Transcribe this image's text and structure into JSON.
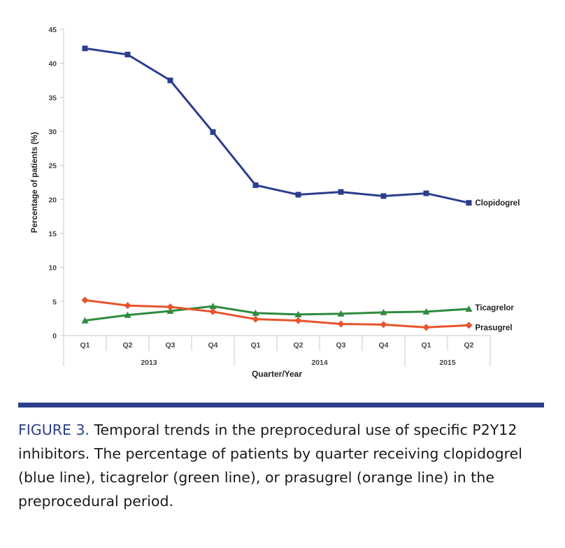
{
  "chart_data": {
    "type": "line",
    "ylabel": "Percentage of patients (%)",
    "xlabel": "Quarter/Year",
    "ylim": [
      0,
      45
    ],
    "yticks": [
      0,
      5,
      10,
      15,
      20,
      25,
      30,
      35,
      40,
      45
    ],
    "categories": [
      "Q1",
      "Q2",
      "Q3",
      "Q4",
      "Q1",
      "Q2",
      "Q3",
      "Q4",
      "Q1",
      "Q2"
    ],
    "year_groups": [
      {
        "label": "2013",
        "count": 4
      },
      {
        "label": "2014",
        "count": 4
      },
      {
        "label": "2015",
        "count": 2
      }
    ],
    "grid": false,
    "legend": "end-of-line labels",
    "series": [
      {
        "name": "Clopidogrel",
        "color": "#2b3d8f",
        "marker": "square",
        "values": [
          42.2,
          41.3,
          37.5,
          29.9,
          22.1,
          20.7,
          21.1,
          20.5,
          20.9,
          19.5
        ]
      },
      {
        "name": "Ticagrelor",
        "color": "#2e8b3e",
        "marker": "triangle",
        "values": [
          2.2,
          3.0,
          3.6,
          4.3,
          3.3,
          3.1,
          3.2,
          3.4,
          3.5,
          3.9
        ]
      },
      {
        "name": "Prasugrel",
        "color": "#e8532b",
        "marker": "diamond",
        "values": [
          5.2,
          4.4,
          4.2,
          3.5,
          2.4,
          2.2,
          1.7,
          1.6,
          1.2,
          1.5
        ]
      }
    ]
  },
  "caption": {
    "label": "FIGURE 3.",
    "text": " Temporal trends in the preprocedural use of specific P2Y12 inhibitors. The percentage of patients by quarter receiving clopidogrel (blue line), ticagrelor (green line), or prasugrel (orange line) in the preprocedural period."
  },
  "colors": {
    "accent_bar": "#2b3f8c",
    "caption_label": "#2b3f8c"
  }
}
